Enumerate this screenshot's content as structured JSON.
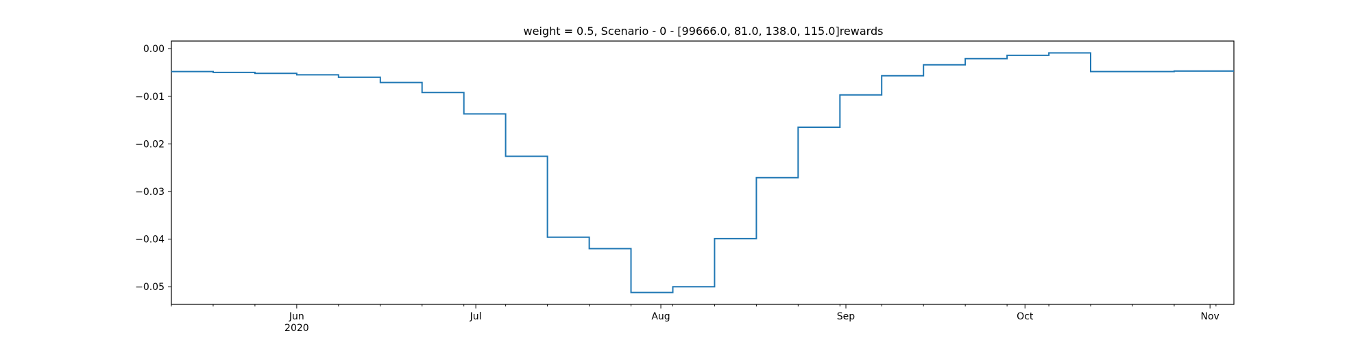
{
  "chart_data": {
    "type": "line",
    "step": "post",
    "title": "weight = 0.5, Scenario - 0 - [99666.0, 81.0, 138.0, 115.0]rewards",
    "xlabel": "",
    "ylabel": "",
    "series": [
      {
        "color": "#1f77b4",
        "x": [
          "2020-05-11",
          "2020-05-18",
          "2020-05-25",
          "2020-06-01",
          "2020-06-08",
          "2020-06-15",
          "2020-06-22",
          "2020-06-29",
          "2020-07-06",
          "2020-07-13",
          "2020-07-20",
          "2020-07-27",
          "2020-08-03",
          "2020-08-10",
          "2020-08-17",
          "2020-08-24",
          "2020-08-31",
          "2020-09-07",
          "2020-09-14",
          "2020-09-21",
          "2020-09-28",
          "2020-10-05",
          "2020-10-12",
          "2020-10-19",
          "2020-10-26",
          "2020-11-05"
        ],
        "y": [
          -0.0048,
          -0.005,
          -0.0052,
          -0.0055,
          -0.006,
          -0.0071,
          -0.0092,
          -0.0137,
          -0.0226,
          -0.0396,
          -0.042,
          -0.0512,
          -0.05,
          -0.0399,
          -0.0271,
          -0.0165,
          -0.0097,
          -0.0057,
          -0.0034,
          -0.0021,
          -0.0014,
          -0.0009,
          -0.0048,
          -0.0048,
          -0.0047,
          -0.0047
        ]
      }
    ],
    "xlim": [
      "2020-05-11",
      "2020-11-05"
    ],
    "ylim": [
      -0.0537,
      0.0016
    ],
    "x_major_ticks": [
      {
        "date": "2020-06-01",
        "label": "Jun",
        "sublabel": "2020"
      },
      {
        "date": "2020-07-01",
        "label": "Jul",
        "sublabel": ""
      },
      {
        "date": "2020-08-01",
        "label": "Aug",
        "sublabel": ""
      },
      {
        "date": "2020-09-01",
        "label": "Sep",
        "sublabel": ""
      },
      {
        "date": "2020-10-01",
        "label": "Oct",
        "sublabel": ""
      },
      {
        "date": "2020-11-01",
        "label": "Nov",
        "sublabel": ""
      }
    ],
    "x_minor_ticks": [
      "2020-05-11",
      "2020-05-18",
      "2020-05-25",
      "2020-06-08",
      "2020-06-15",
      "2020-06-22",
      "2020-06-29",
      "2020-07-06",
      "2020-07-13",
      "2020-07-20",
      "2020-07-27",
      "2020-08-03",
      "2020-08-10",
      "2020-08-17",
      "2020-08-24",
      "2020-08-31",
      "2020-09-07",
      "2020-09-14",
      "2020-09-21",
      "2020-09-28",
      "2020-10-05",
      "2020-10-12",
      "2020-10-19",
      "2020-10-26",
      "2020-11-02"
    ],
    "y_ticks": [
      {
        "value": 0.0,
        "label": "0.00"
      },
      {
        "value": -0.01,
        "label": "−0.01"
      },
      {
        "value": -0.02,
        "label": "−0.02"
      },
      {
        "value": -0.03,
        "label": "−0.03"
      },
      {
        "value": -0.04,
        "label": "−0.04"
      },
      {
        "value": -0.05,
        "label": "−0.05"
      }
    ],
    "grid": false,
    "legend": "none"
  }
}
